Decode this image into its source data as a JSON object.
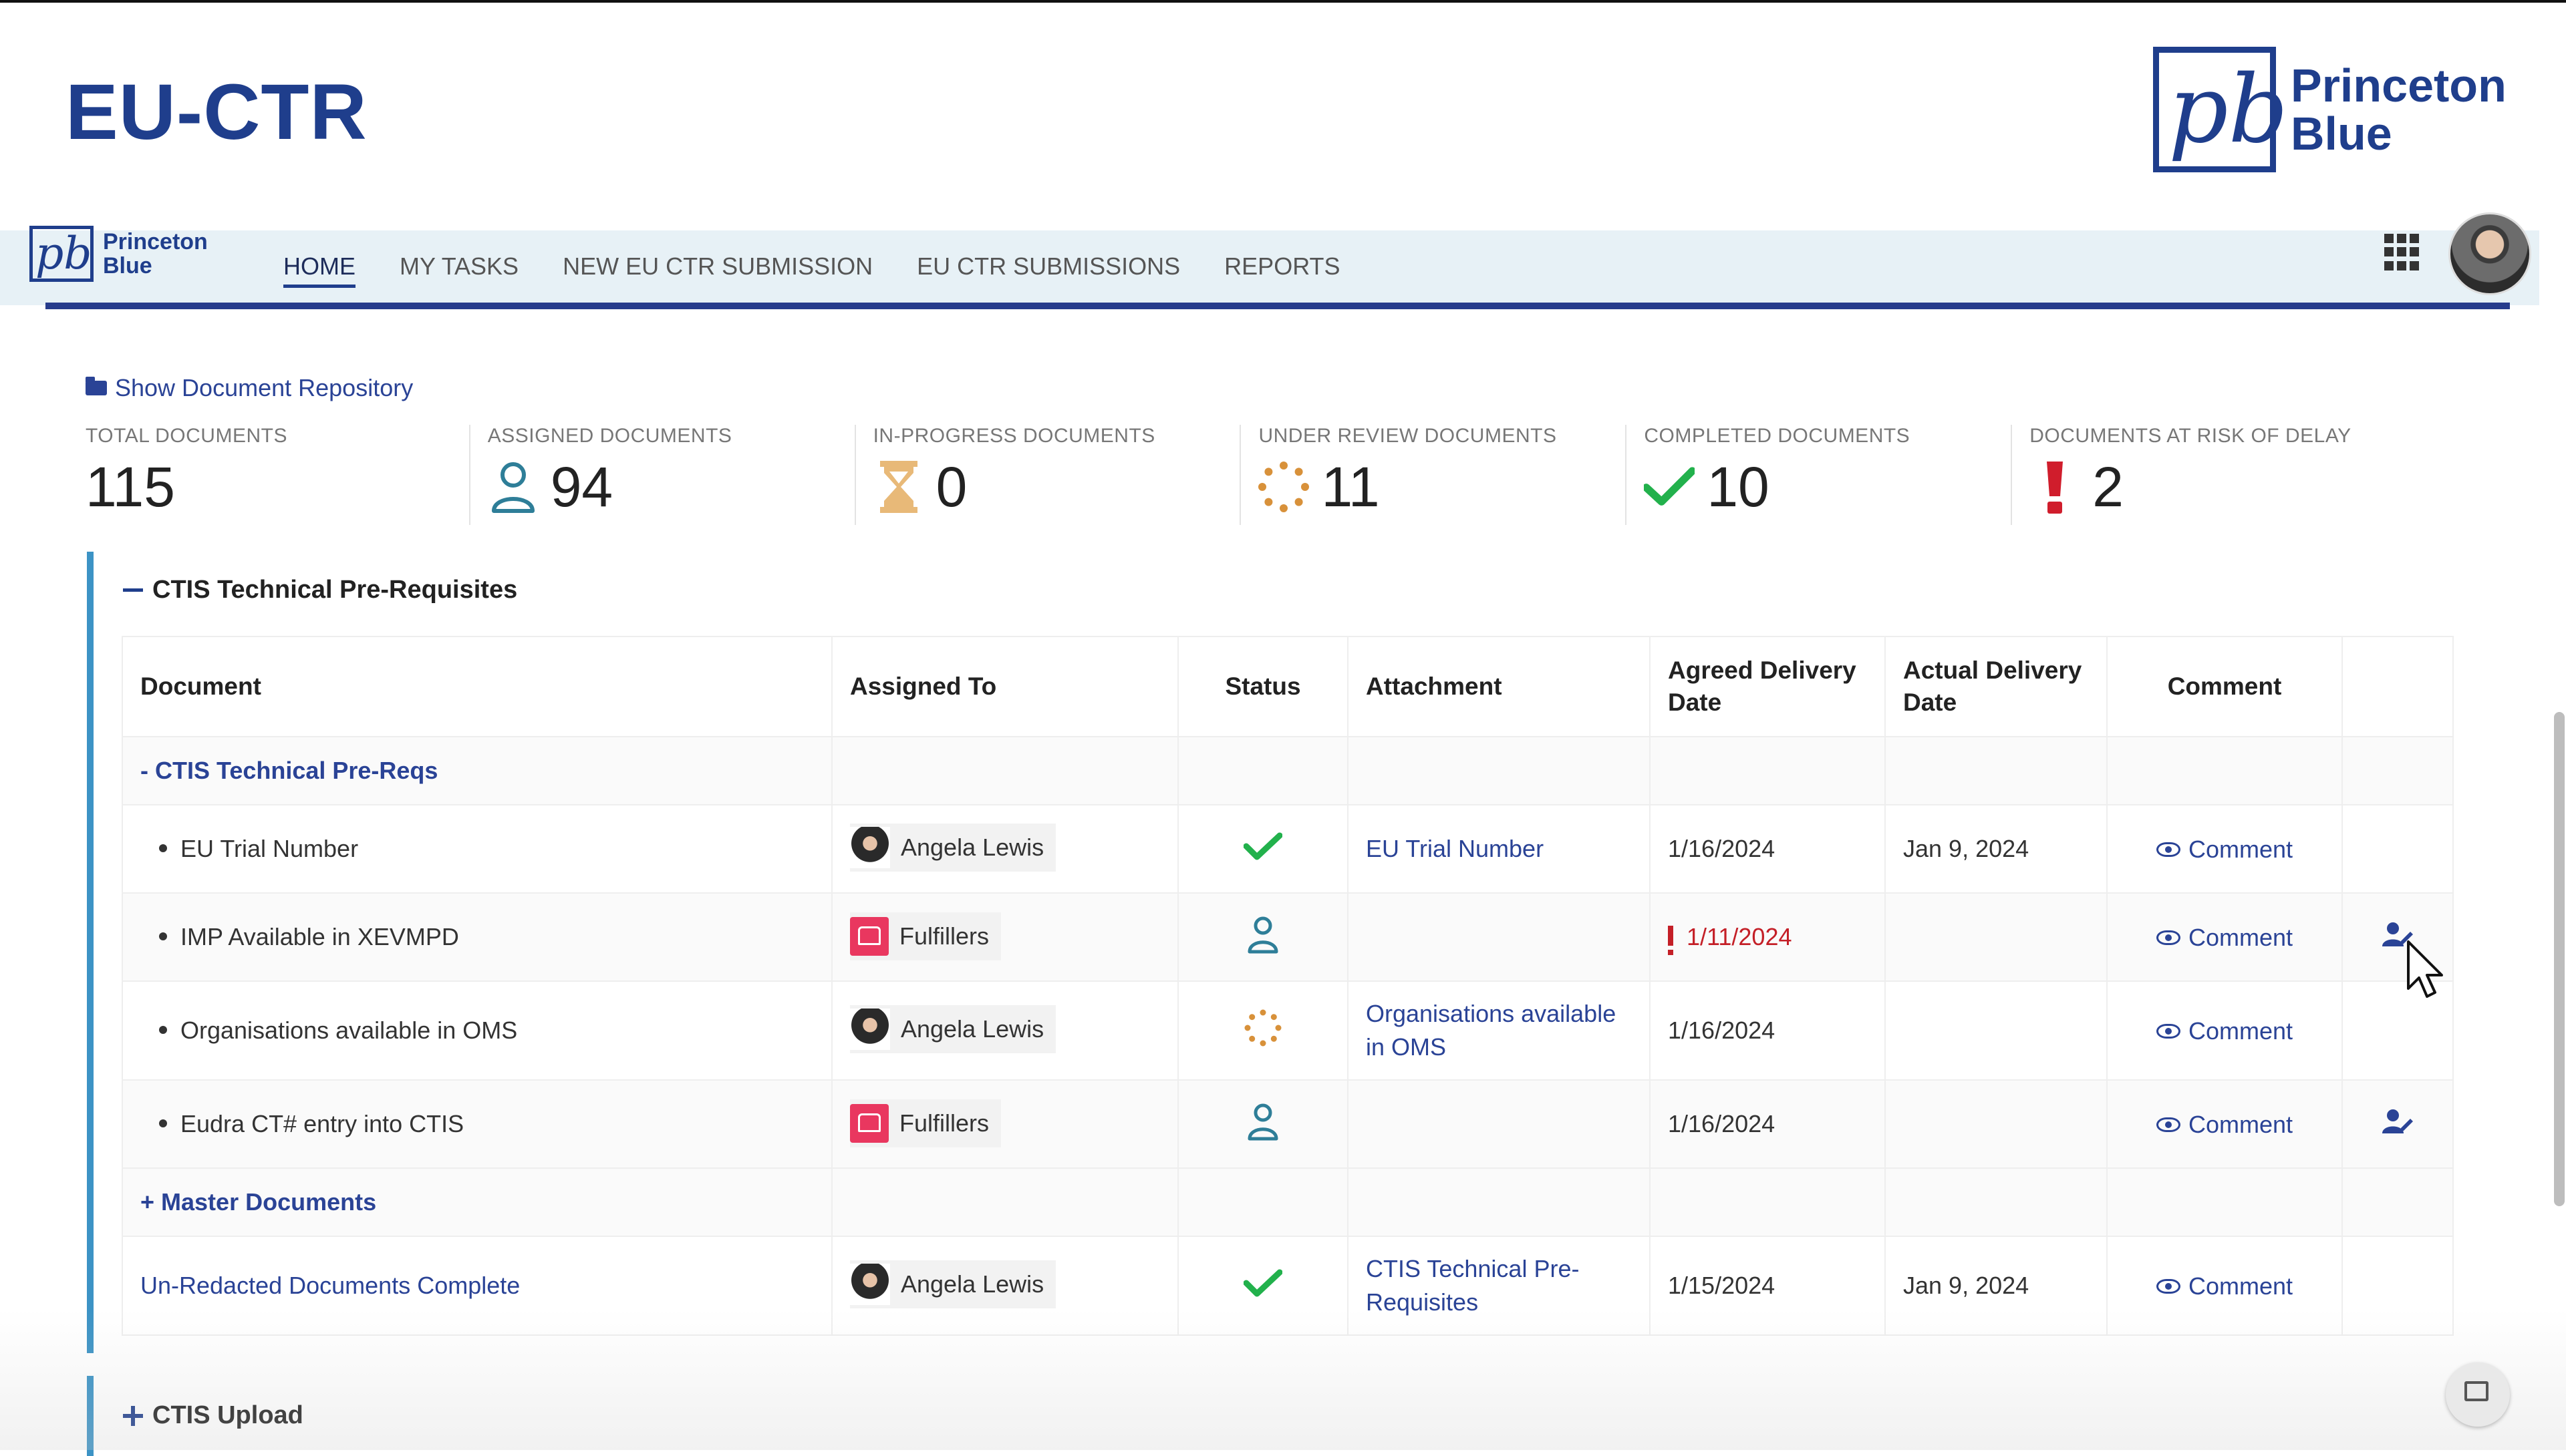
{
  "banner": {
    "title": "EU-CTR",
    "brand_mark": "pb",
    "brand_line1": "Princeton",
    "brand_line2": "Blue"
  },
  "nav": {
    "logo_mark": "pb",
    "logo_line1": "Princeton",
    "logo_line2": "Blue",
    "tabs": [
      {
        "label": "HOME",
        "active": true
      },
      {
        "label": "MY TASKS"
      },
      {
        "label": "NEW EU CTR SUBMISSION"
      },
      {
        "label": "EU CTR SUBMISSIONS"
      },
      {
        "label": "REPORTS"
      }
    ],
    "apps_icon": "grid-apps-icon",
    "avatar": "user-avatar"
  },
  "repo_link": "Show Document Repository",
  "stats": [
    {
      "label": "TOTAL DOCUMENTS",
      "value": "115",
      "icon": ""
    },
    {
      "label": "ASSIGNED DOCUMENTS",
      "value": "94",
      "icon": "user-icon"
    },
    {
      "label": "IN-PROGRESS DOCUMENTS",
      "value": "0",
      "icon": "hourglass-icon"
    },
    {
      "label": "UNDER REVIEW DOCUMENTS",
      "value": "11",
      "icon": "spinner-icon"
    },
    {
      "label": "COMPLETED DOCUMENTS",
      "value": "10",
      "icon": "check-icon"
    },
    {
      "label": "DOCUMENTS AT RISK OF DELAY",
      "value": "2",
      "icon": "exclamation-icon"
    }
  ],
  "colors": {
    "accent": "#1f3e8c",
    "link": "#2a4396",
    "section_bar": "#3c93c5",
    "check": "#22b14c",
    "risk": "#d01d2c",
    "hourglass": "#e8b978",
    "spinner": "#d8913a",
    "user_teal": "#2e7e98",
    "late": "#c41f27"
  },
  "section": {
    "title": "CTIS Technical Pre-Requisites",
    "columns": [
      "Document",
      "Assigned To",
      "Status",
      "Attachment",
      "Agreed Delivery Date",
      "Actual Delivery Date",
      "Comment",
      ""
    ],
    "groups": [
      {
        "label": "- CTIS Technical Pre-Reqs"
      },
      {
        "label": "+ Master Documents"
      }
    ],
    "rows": [
      {
        "document": "EU Trial Number",
        "assignee": "Angela Lewis",
        "assignee_type": "person",
        "status": "check-icon",
        "attachment": "EU Trial Number",
        "agreed": "1/16/2024",
        "agreed_late": false,
        "actual": "Jan 9, 2024",
        "comment": "Comment",
        "action": ""
      },
      {
        "document": "IMP Available in XEVMPD",
        "assignee": "Fulfillers",
        "assignee_type": "group",
        "status": "user-icon",
        "attachment": "",
        "agreed": "1/11/2024",
        "agreed_late": true,
        "actual": "",
        "comment": "Comment",
        "action": "assign-user-icon"
      },
      {
        "document": "Organisations available in OMS",
        "assignee": "Angela Lewis",
        "assignee_type": "person",
        "status": "spinner-icon",
        "attachment": "Organisations available in OMS",
        "agreed": "1/16/2024",
        "agreed_late": false,
        "actual": "",
        "comment": "Comment",
        "action": ""
      },
      {
        "document": "Eudra CT# entry into CTIS",
        "assignee": "Fulfillers",
        "assignee_type": "group",
        "status": "user-icon",
        "attachment": "",
        "agreed": "1/16/2024",
        "agreed_late": false,
        "actual": "",
        "comment": "Comment",
        "action": "assign-user-icon"
      }
    ],
    "summary_row": {
      "document": "Un-Redacted Documents Complete",
      "assignee": "Angela Lewis",
      "status": "check-icon",
      "attachment": "CTIS Technical Pre-Requisites",
      "agreed": "1/15/2024",
      "actual": "Jan 9, 2024",
      "comment": "Comment"
    }
  },
  "section2": {
    "title": "CTIS Upload"
  }
}
